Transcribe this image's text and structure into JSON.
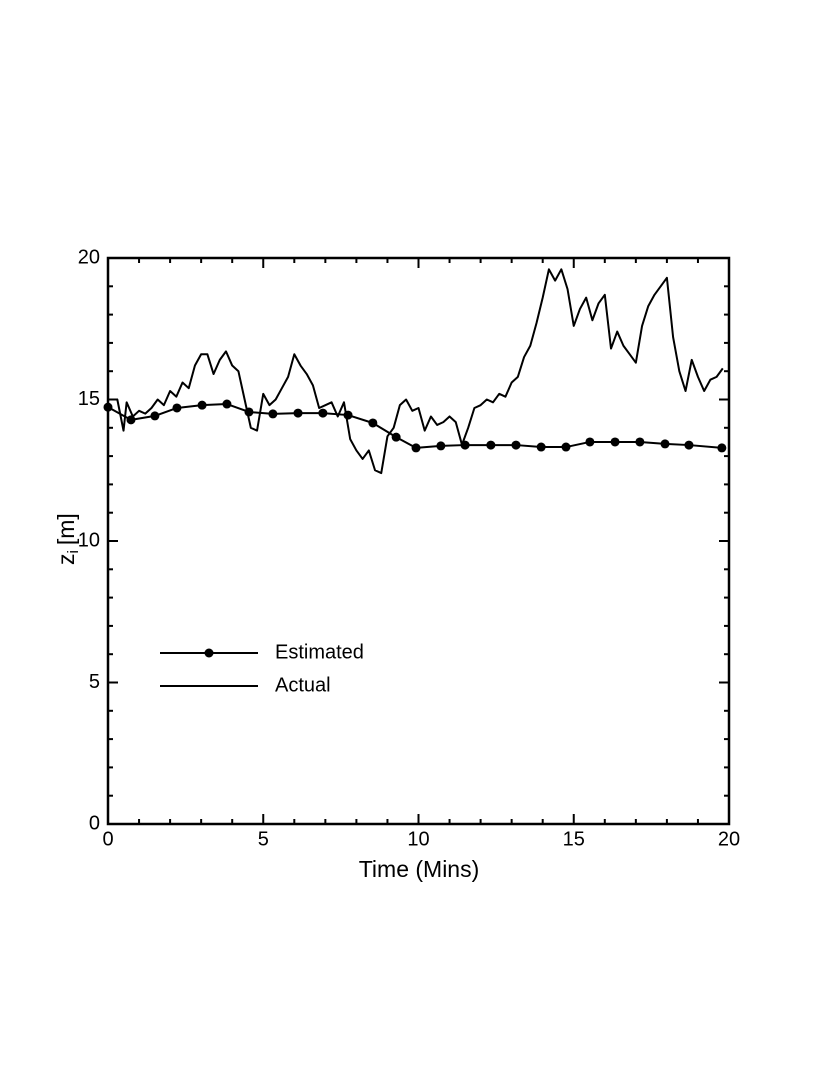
{
  "chart_data": {
    "type": "line",
    "xlabel": "Time (Mins)",
    "ylabel": {
      "text": "z",
      "subscript": "i",
      "unit": "[m]"
    },
    "xlim": [
      0,
      20
    ],
    "ylim": [
      0,
      20
    ],
    "xticks": [
      0,
      5,
      10,
      15,
      20
    ],
    "yticks": [
      0,
      5,
      10,
      15,
      20
    ],
    "xminor_ticks": [
      1,
      2,
      3,
      4,
      6,
      7,
      8,
      9,
      11,
      12,
      13,
      14,
      16,
      17,
      18,
      19
    ],
    "yminor_ticks": [
      1,
      2,
      3,
      4,
      6,
      7,
      8,
      9,
      11,
      12,
      13,
      14,
      16,
      17,
      18,
      19
    ],
    "legend": "lower-left",
    "series": [
      {
        "name": "Estimated",
        "color": "#000000",
        "marker": true,
        "x": [
          0,
          0.74,
          1.51,
          2.22,
          3.03,
          3.83,
          4.54,
          5.31,
          6.12,
          6.92,
          7.73,
          8.53,
          9.28,
          9.92,
          10.72,
          11.5,
          12.33,
          13.14,
          13.95,
          14.75,
          15.52,
          16.33,
          17.13,
          17.94,
          18.71,
          19.77
        ],
        "values": [
          14.73,
          14.28,
          14.42,
          14.7,
          14.8,
          14.84,
          14.56,
          14.49,
          14.52,
          14.52,
          14.45,
          14.17,
          13.67,
          13.29,
          13.36,
          13.39,
          13.39,
          13.39,
          13.32,
          13.32,
          13.5,
          13.5,
          13.5,
          13.43,
          13.39,
          13.29
        ]
      },
      {
        "name": "Actual",
        "color": "#000000",
        "marker": false,
        "x": [
          0,
          0.3,
          0.5,
          0.6,
          0.8,
          1.0,
          1.2,
          1.4,
          1.6,
          1.8,
          2.0,
          2.2,
          2.4,
          2.6,
          2.8,
          3.0,
          3.2,
          3.4,
          3.6,
          3.8,
          4.0,
          4.2,
          4.4,
          4.6,
          4.8,
          5.0,
          5.2,
          5.4,
          5.6,
          5.8,
          6.0,
          6.2,
          6.4,
          6.6,
          6.8,
          7.0,
          7.2,
          7.4,
          7.6,
          7.8,
          8.0,
          8.2,
          8.4,
          8.6,
          8.8,
          9.0,
          9.2,
          9.4,
          9.6,
          9.8,
          10.0,
          10.2,
          10.4,
          10.6,
          10.8,
          11.0,
          11.2,
          11.4,
          11.6,
          11.8,
          12.0,
          12.2,
          12.4,
          12.6,
          12.8,
          13.0,
          13.2,
          13.4,
          13.6,
          13.8,
          14.0,
          14.2,
          14.4,
          14.6,
          14.8,
          15.0,
          15.2,
          15.4,
          15.6,
          15.8,
          16.0,
          16.2,
          16.4,
          16.6,
          16.8,
          17.0,
          17.2,
          17.4,
          17.6,
          17.8,
          18.0,
          18.2,
          18.4,
          18.6,
          18.8,
          19.0,
          19.2,
          19.4,
          19.6,
          19.8
        ],
        "values": [
          15.0,
          15.0,
          13.9,
          14.9,
          14.4,
          14.6,
          14.5,
          14.7,
          15.0,
          14.8,
          15.3,
          15.1,
          15.6,
          15.4,
          16.2,
          16.6,
          16.6,
          15.9,
          16.4,
          16.7,
          16.2,
          16.0,
          15.0,
          14.0,
          13.9,
          15.2,
          14.8,
          15.0,
          15.4,
          15.8,
          16.6,
          16.2,
          15.9,
          15.5,
          14.7,
          14.8,
          14.9,
          14.4,
          14.9,
          13.6,
          13.2,
          12.9,
          13.2,
          12.5,
          12.4,
          13.7,
          14.0,
          14.8,
          15.0,
          14.6,
          14.7,
          13.9,
          14.4,
          14.1,
          14.2,
          14.4,
          14.2,
          13.4,
          14.0,
          14.7,
          14.8,
          15.0,
          14.9,
          15.2,
          15.1,
          15.6,
          15.8,
          16.5,
          16.9,
          17.7,
          18.6,
          19.6,
          19.2,
          19.6,
          18.9,
          17.6,
          18.2,
          18.6,
          17.8,
          18.4,
          18.7,
          16.8,
          17.4,
          16.9,
          16.6,
          16.3,
          17.6,
          18.3,
          18.7,
          19.0,
          19.3,
          17.2,
          16.0,
          15.3,
          16.4,
          15.8,
          15.3,
          15.7,
          15.8,
          16.1
        ]
      }
    ]
  }
}
